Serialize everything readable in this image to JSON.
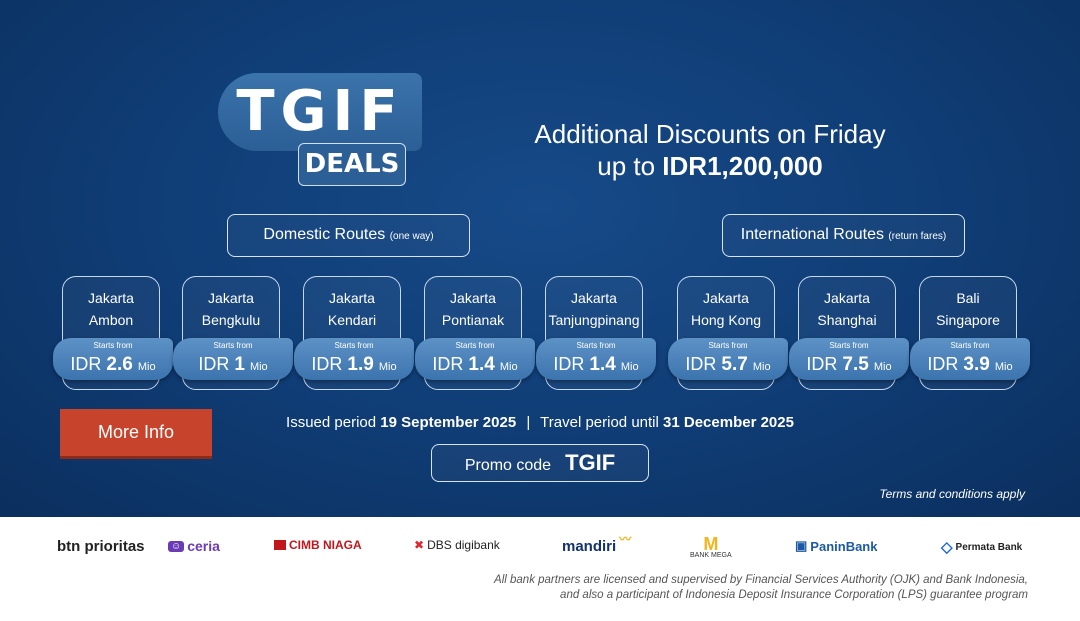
{
  "logo": {
    "tgif": "TGIF",
    "deals": "DEALS"
  },
  "headline": {
    "line1": "Additional Discounts on Friday",
    "line2_prefix": "up to",
    "line2_amount": "IDR1,200,000"
  },
  "domestic": {
    "label": "Domestic Routes",
    "note": "(one way)"
  },
  "international": {
    "label": "International Routes",
    "note": "(return fares)"
  },
  "routes": [
    {
      "from": "Jakarta",
      "to": "Ambon",
      "starts": "Starts from",
      "cur": "IDR",
      "price": "2.6",
      "unit": "Mio"
    },
    {
      "from": "Jakarta",
      "to": "Bengkulu",
      "starts": "Starts from",
      "cur": "IDR",
      "price": "1",
      "unit": "Mio"
    },
    {
      "from": "Jakarta",
      "to": "Kendari",
      "starts": "Starts from",
      "cur": "IDR",
      "price": "1.9",
      "unit": "Mio"
    },
    {
      "from": "Jakarta",
      "to": "Pontianak",
      "starts": "Starts from",
      "cur": "IDR",
      "price": "1.4",
      "unit": "Mio"
    },
    {
      "from": "Jakarta",
      "to": "Tanjungpinang",
      "starts": "Starts from",
      "cur": "IDR",
      "price": "1.4",
      "unit": "Mio"
    },
    {
      "from": "Jakarta",
      "to": "Hong Kong",
      "starts": "Starts from",
      "cur": "IDR",
      "price": "5.7",
      "unit": "Mio"
    },
    {
      "from": "Jakarta",
      "to": "Shanghai",
      "starts": "Starts from",
      "cur": "IDR",
      "price": "7.5",
      "unit": "Mio"
    },
    {
      "from": "Bali",
      "to": "Singapore",
      "starts": "Starts from",
      "cur": "IDR",
      "price": "3.9",
      "unit": "Mio"
    }
  ],
  "more_info": "More Info",
  "period": {
    "issued_label": "Issued period",
    "issued": "19 September 2025",
    "sep": "|",
    "travel_label": "Travel period until",
    "travel": "31 December 2025"
  },
  "promo": {
    "label": "Promo code",
    "code": "TGIF"
  },
  "terms": "Terms and conditions apply",
  "banks": [
    "btn prioritas",
    "ceria",
    "CIMB NIAGA",
    "DBS digibank",
    "mandiri",
    "BANK MEGA",
    "PaninBank",
    "Permata Bank"
  ],
  "disclaimer": {
    "line1": "All bank partners are licensed and supervised by Financial Services Authority (OJK) and Bank Indonesia,",
    "line2": "and also a participant of Indonesia Deposit Insurance Corporation (LPS) guarantee program"
  },
  "colors": {
    "background": "#0f3c74",
    "cta": "#c8432b",
    "pill": "#4a82bb"
  }
}
